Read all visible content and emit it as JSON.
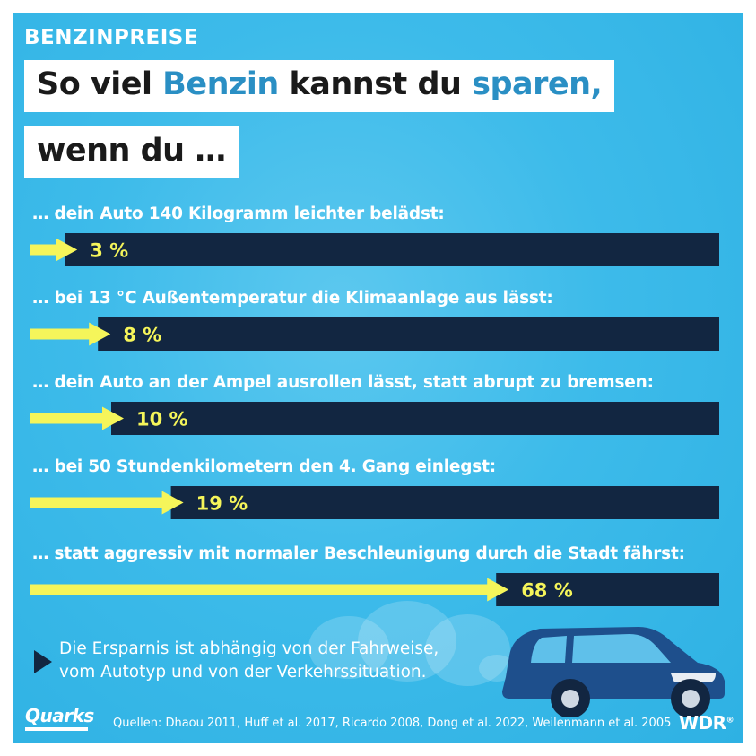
{
  "topic": "BENZINPREISE",
  "headline": {
    "line1_part1": "So viel ",
    "line1_accent1": "Benzin",
    "line1_part2": " kannst du ",
    "line1_accent2": "sparen,",
    "line2": "wenn du …"
  },
  "chart_data": {
    "type": "bar",
    "orientation": "horizontal",
    "unit": "%",
    "categories": [
      "… dein Auto 140 Kilogramm leichter belädst:",
      "… bei 13 °C Außentemperatur die Klimaanlage aus lässt:",
      "… dein Auto an der Ampel ausrollen lässt, statt abrupt zu bremsen:",
      "… bei 50 Stundenkilometern den 4. Gang einlegst:",
      "… statt aggressiv mit normaler Beschleunigung durch die Stadt fährst:"
    ],
    "values": [
      3,
      8,
      10,
      19,
      68
    ],
    "value_labels": [
      "3 %",
      "8 %",
      "10 %",
      "19 %",
      "68 %"
    ],
    "xlim": [
      0,
      100
    ]
  },
  "note": {
    "line1": "Die Ersparnis ist abhängig von der Fahrweise,",
    "line2": "vom Autotyp und von der Verkehrssituation."
  },
  "sources": "Quellen: Dhaou 2011, Huff et al. 2017, Ricardo 2008, Dong et al. 2022, Weilenmann et al. 2005",
  "logos": {
    "left": "Quarks",
    "right": "WDR",
    "right_mark": "®"
  },
  "colors": {
    "background": "#3dbbea",
    "bar_track": "#122641",
    "arrow": "#f5f55a",
    "value_text": "#f5f55a",
    "accent_text": "#2a8fc4",
    "car_body": "#1e4f8c"
  }
}
